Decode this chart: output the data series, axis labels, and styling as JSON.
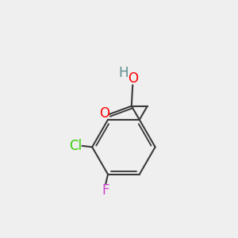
{
  "background_color": "#efefef",
  "bond_color": "#3a3a3a",
  "bond_width": 1.5,
  "O_color": "#ff0000",
  "H_color": "#5a8a8a",
  "Cl_color": "#33cc00",
  "F_color": "#cc44cc",
  "font_size": 11,
  "fig_size": [
    3.0,
    3.0
  ],
  "dpi": 100,
  "xlim": [
    0,
    10
  ],
  "ylim": [
    0,
    10
  ]
}
